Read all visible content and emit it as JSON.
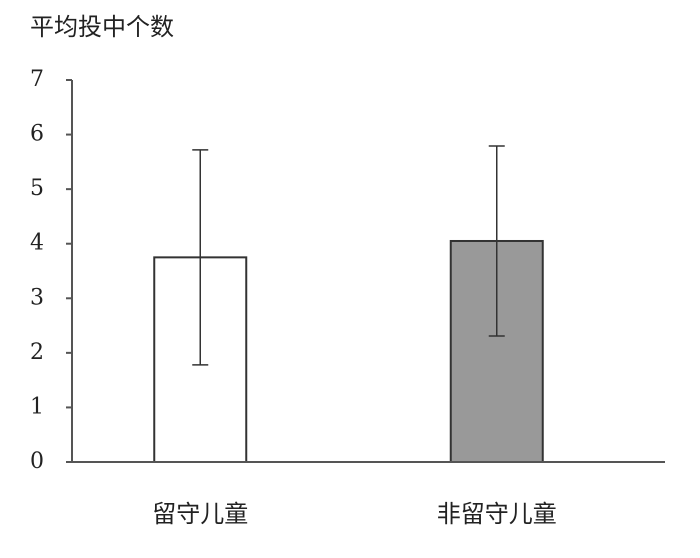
{
  "chart_data": {
    "type": "bar",
    "title": "平均投中个数",
    "categories": [
      "留守儿童",
      "非留守儿童"
    ],
    "values": [
      3.75,
      4.05
    ],
    "errors": [
      1.97,
      1.74
    ],
    "colors": [
      "#ffffff",
      "#999999"
    ],
    "ylim": [
      0,
      7
    ],
    "yticks": [
      0,
      1,
      2,
      3,
      4,
      5,
      6,
      7
    ],
    "grid": false
  }
}
